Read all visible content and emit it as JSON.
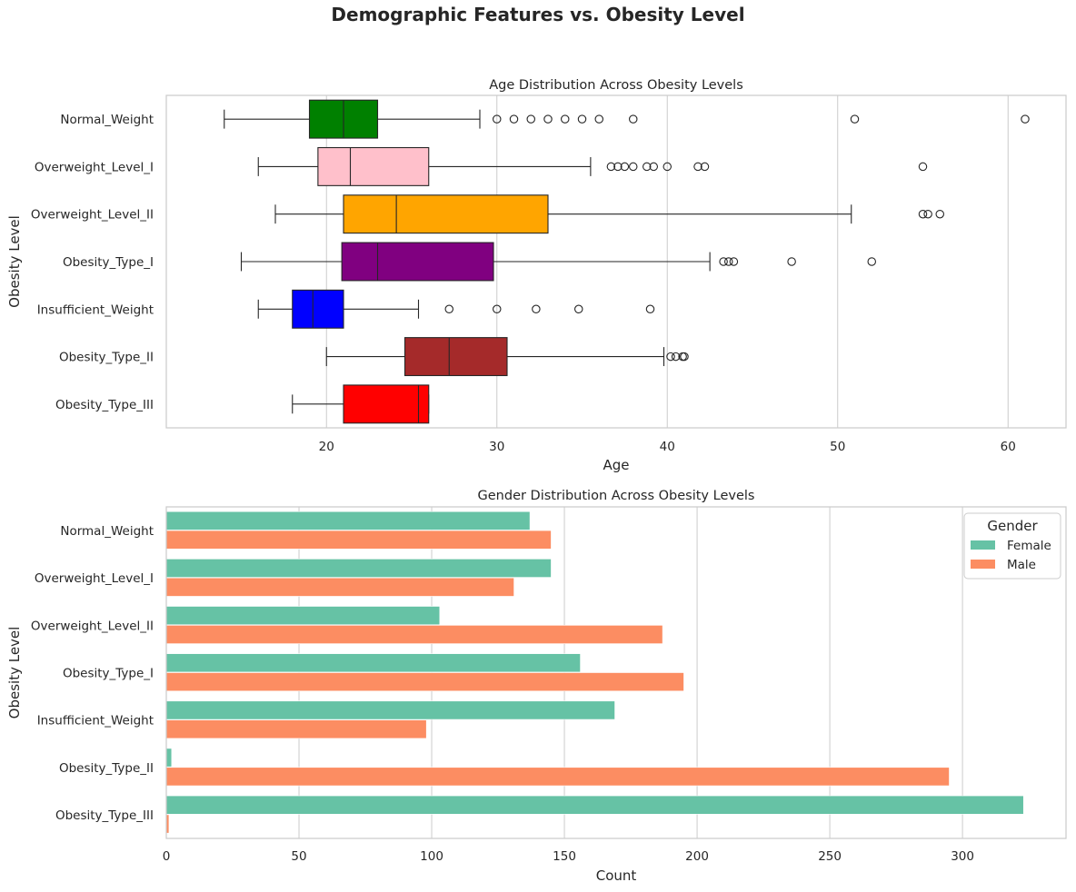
{
  "suptitle": "Demographic Features vs. Obesity Level",
  "chart_data": [
    {
      "type": "box",
      "orientation": "horizontal",
      "title": "Age Distribution Across Obesity Levels",
      "xlabel": "Age",
      "ylabel": "Obesity Level",
      "xlim": [
        10.6,
        63.4
      ],
      "xticks": [
        20,
        30,
        40,
        50,
        60
      ],
      "grid": "vertical",
      "categories": [
        "Normal_Weight",
        "Overweight_Level_I",
        "Overweight_Level_II",
        "Obesity_Type_I",
        "Insufficient_Weight",
        "Obesity_Type_II",
        "Obesity_Type_III"
      ],
      "boxes": [
        {
          "category": "Normal_Weight",
          "color": "#008000",
          "whisker_low": 14,
          "q1": 19,
          "median": 21,
          "q3": 23,
          "whisker_high": 29,
          "outliers": [
            30,
            31,
            32,
            33,
            34,
            35,
            36,
            38,
            51,
            61
          ]
        },
        {
          "category": "Overweight_Level_I",
          "color": "#ffc0cb",
          "whisker_low": 16,
          "q1": 19.5,
          "median": 21.4,
          "q3": 26,
          "whisker_high": 35.5,
          "outliers": [
            36.7,
            37.1,
            37.5,
            38,
            38.8,
            39.2,
            40,
            41.8,
            42.2,
            55
          ]
        },
        {
          "category": "Overweight_Level_II",
          "color": "#ffa500",
          "whisker_low": 17,
          "q1": 21,
          "median": 24.1,
          "q3": 33,
          "whisker_high": 50.8,
          "outliers": [
            55,
            55.3,
            56
          ]
        },
        {
          "category": "Obesity_Type_I",
          "color": "#800080",
          "whisker_low": 15,
          "q1": 20.9,
          "median": 23,
          "q3": 29.8,
          "whisker_high": 42.5,
          "outliers": [
            43.3,
            43.6,
            43.9,
            47.3,
            52
          ]
        },
        {
          "category": "Insufficient_Weight",
          "color": "#0000ff",
          "whisker_low": 16,
          "q1": 18,
          "median": 19.2,
          "q3": 21,
          "whisker_high": 25.4,
          "outliers": [
            27.2,
            30,
            32.3,
            34.8,
            39
          ]
        },
        {
          "category": "Obesity_Type_II",
          "color": "#a52a2a",
          "whisker_low": 20,
          "q1": 24.6,
          "median": 27.2,
          "q3": 30.6,
          "whisker_high": 39.8,
          "outliers": [
            40.2,
            40.5,
            40.9,
            41
          ]
        },
        {
          "category": "Obesity_Type_III",
          "color": "#ff0000",
          "whisker_low": 18,
          "q1": 21,
          "median": 25.4,
          "q3": 26,
          "whisker_high": 26,
          "outliers": []
        }
      ]
    },
    {
      "type": "bar",
      "orientation": "horizontal",
      "title": "Gender Distribution Across Obesity Levels",
      "xlabel": "Count",
      "ylabel": "Obesity Level",
      "xlim": [
        0,
        339
      ],
      "xticks": [
        0,
        50,
        100,
        150,
        200,
        250,
        300
      ],
      "grid": "vertical",
      "legend": {
        "title": "Gender",
        "position": "top-right"
      },
      "categories": [
        "Normal_Weight",
        "Overweight_Level_I",
        "Overweight_Level_II",
        "Obesity_Type_I",
        "Insufficient_Weight",
        "Obesity_Type_II",
        "Obesity_Type_III"
      ],
      "series": [
        {
          "name": "Female",
          "color": "#66c2a5",
          "values": [
            137,
            145,
            103,
            156,
            169,
            2,
            323
          ]
        },
        {
          "name": "Male",
          "color": "#fc8d62",
          "values": [
            145,
            131,
            187,
            195,
            98,
            295,
            1
          ]
        }
      ]
    }
  ]
}
